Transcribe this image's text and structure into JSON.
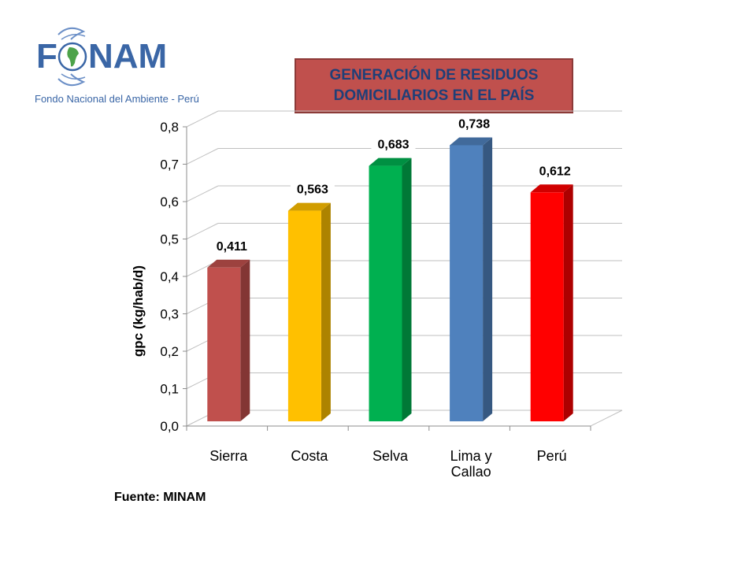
{
  "logo": {
    "name": "FONAM",
    "subtitle": "Fondo Nacional del Ambiente - Perú"
  },
  "title": {
    "line1": "GENERACIÓN DE RESIDUOS",
    "line2": "DOMICILIARIOS EN EL PAÍS"
  },
  "source": "Fuente: MINAM",
  "chart_data": {
    "type": "bar",
    "categories": [
      [
        "Sierra"
      ],
      [
        "Costa"
      ],
      [
        "Selva"
      ],
      [
        "Lima y",
        "Callao"
      ],
      [
        "Perú"
      ]
    ],
    "values": [
      0.411,
      0.563,
      0.683,
      0.738,
      0.612
    ],
    "data_labels": [
      "0,411",
      "0,563",
      "0,683",
      "0,738",
      "0,612"
    ],
    "colors": [
      "#c0504d",
      "#ffc000",
      "#00b050",
      "#4f81bd",
      "#ff0000"
    ],
    "ylabel": "gpc (kg/hab/d)",
    "ylim": [
      0,
      0.8
    ],
    "yticks": [
      "0,0",
      "0,1",
      "0,2",
      "0,3",
      "0,4",
      "0,5",
      "0,6",
      "0,7",
      "0,8"
    ],
    "grid": true,
    "legend": "none",
    "style": "3d-column"
  }
}
